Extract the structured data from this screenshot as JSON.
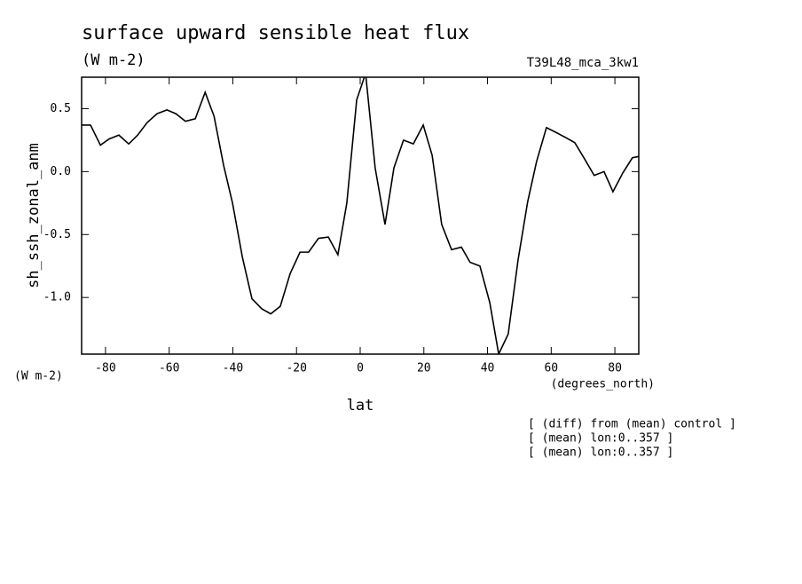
{
  "chart_data": {
    "type": "line",
    "title": "surface upward sensible heat flux",
    "subtitle": "(W m-2)",
    "dataset": "T39L48_mca_3kw1",
    "y_label": "sh_ssh_zonal_anm",
    "y_units": "(W m-2)",
    "x_units": "(degrees_north)",
    "x_label": "lat",
    "notes": [
      "[ (diff) from (mean) control ]",
      "[ (mean) lon:0..357 ]",
      "[ (mean) lon:0..357 ]"
    ],
    "x": [
      -87.5,
      -84.7,
      -81.6,
      -78.8,
      -75.8,
      -72.7,
      -69.9,
      -66.9,
      -63.8,
      -60.7,
      -57.9,
      -54.9,
      -51.8,
      -48.7,
      -45.9,
      -42.9,
      -40.1,
      -37.0,
      -34.0,
      -30.9,
      -28.1,
      -25.1,
      -22.0,
      -18.9,
      -16.2,
      -13.1,
      -10.0,
      -7.0,
      -4.2,
      -1.1,
      1.7,
      4.7,
      7.8,
      10.6,
      13.6,
      16.7,
      19.8,
      22.6,
      25.6,
      28.7,
      31.8,
      34.5,
      37.6,
      40.7,
      43.5,
      46.5,
      49.6,
      52.6,
      55.4,
      58.5,
      61.6,
      64.6,
      67.4,
      70.5,
      73.5,
      76.6,
      79.4,
      82.5,
      85.5,
      87.5
    ],
    "series": [
      {
        "color": "#000000",
        "values": [
          0.37,
          0.37,
          0.21,
          0.26,
          0.29,
          0.22,
          0.29,
          0.39,
          0.46,
          0.49,
          0.46,
          0.4,
          0.42,
          0.63,
          0.44,
          0.05,
          -0.25,
          -0.68,
          -1.01,
          -1.09,
          -1.13,
          -1.07,
          -0.81,
          -0.64,
          -0.64,
          -0.53,
          -0.52,
          -0.66,
          -0.25,
          0.57,
          0.78,
          0.03,
          -0.42,
          0.03,
          0.25,
          0.22,
          0.37,
          0.13,
          -0.42,
          -0.62,
          -0.6,
          -0.72,
          -0.75,
          -1.04,
          -1.45,
          -1.29,
          -0.7,
          -0.24,
          0.08,
          0.35,
          0.31,
          0.27,
          0.23,
          0.1,
          -0.03,
          0.0,
          -0.16,
          -0.01,
          0.11,
          0.12
        ]
      }
    ],
    "xlim": [
      -87.5,
      87.5
    ],
    "ylim": [
      -1.45,
      0.75
    ],
    "xticks": [
      -80,
      -60,
      -40,
      -20,
      0,
      20,
      40,
      60,
      80
    ],
    "yticks": [
      0.5,
      {
        "value": 0,
        "label": "0.0"
      },
      -0.5,
      {
        "value": -1,
        "label": "-1.0"
      }
    ]
  }
}
